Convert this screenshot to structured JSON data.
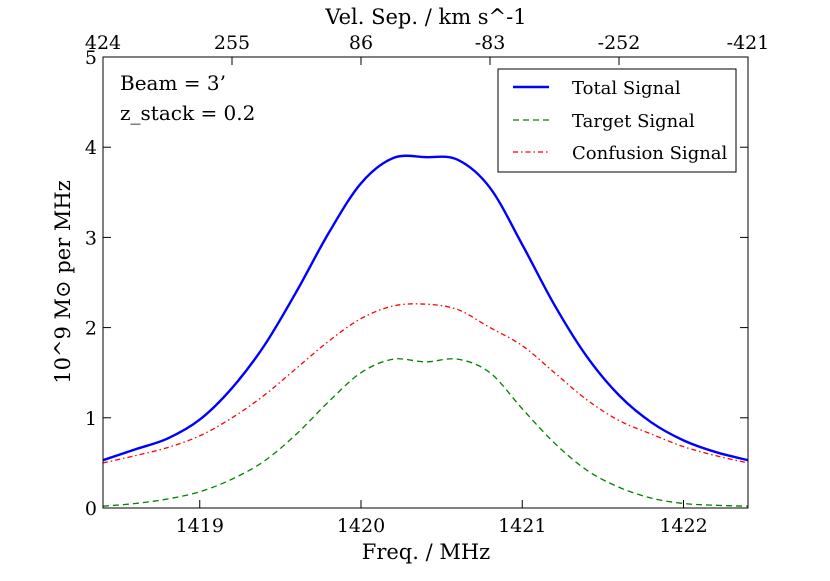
{
  "chart_data": {
    "type": "line",
    "xlabel": "Freq. / MHz",
    "ylabel": "10^9 M⊙ per MHz",
    "top_xlabel": "Vel. Sep. / km s^-1",
    "xlim": [
      1418.4,
      1422.4
    ],
    "ylim": [
      0,
      5
    ],
    "x_ticks": [
      1419,
      1420,
      1421,
      1422
    ],
    "x_tick_labels": [
      "1419",
      "1420",
      "1421",
      "1422"
    ],
    "y_ticks": [
      0,
      1,
      2,
      3,
      4,
      5
    ],
    "y_tick_labels": [
      "0",
      "1",
      "2",
      "3",
      "4",
      "5"
    ],
    "top_ticks_freq": [
      1418.4,
      1419.2,
      1420.0,
      1420.8,
      1421.6,
      1422.4
    ],
    "top_tick_labels": [
      "424",
      "255",
      "86",
      "-83",
      "-252",
      "-421"
    ],
    "annotations": [
      "Beam = 3’",
      "z_stack = 0.2"
    ],
    "legend_position": "top-right",
    "x": [
      1418.4,
      1418.6,
      1418.8,
      1419.0,
      1419.2,
      1419.4,
      1419.6,
      1419.8,
      1420.0,
      1420.2,
      1420.4,
      1420.6,
      1420.8,
      1421.0,
      1421.2,
      1421.4,
      1421.6,
      1421.8,
      1422.0,
      1422.2,
      1422.4
    ],
    "series": [
      {
        "name": "Total Signal",
        "color": "#0000ff",
        "dash": "solid",
        "values": [
          0.53,
          0.65,
          0.77,
          0.98,
          1.33,
          1.8,
          2.4,
          3.05,
          3.6,
          3.88,
          3.89,
          3.86,
          3.55,
          2.92,
          2.25,
          1.68,
          1.25,
          0.95,
          0.75,
          0.62,
          0.53
        ]
      },
      {
        "name": "Target Signal",
        "color": "#008000",
        "dash": "dashed",
        "values": [
          0.02,
          0.05,
          0.1,
          0.18,
          0.32,
          0.52,
          0.82,
          1.18,
          1.5,
          1.65,
          1.62,
          1.65,
          1.5,
          1.1,
          0.72,
          0.42,
          0.23,
          0.11,
          0.05,
          0.03,
          0.02
        ]
      },
      {
        "name": "Confusion Signal",
        "color": "#ff0000",
        "dash": "dashdot",
        "values": [
          0.5,
          0.58,
          0.67,
          0.8,
          1.0,
          1.25,
          1.55,
          1.85,
          2.1,
          2.24,
          2.26,
          2.2,
          2.0,
          1.8,
          1.5,
          1.2,
          0.97,
          0.82,
          0.68,
          0.58,
          0.5
        ]
      }
    ]
  }
}
